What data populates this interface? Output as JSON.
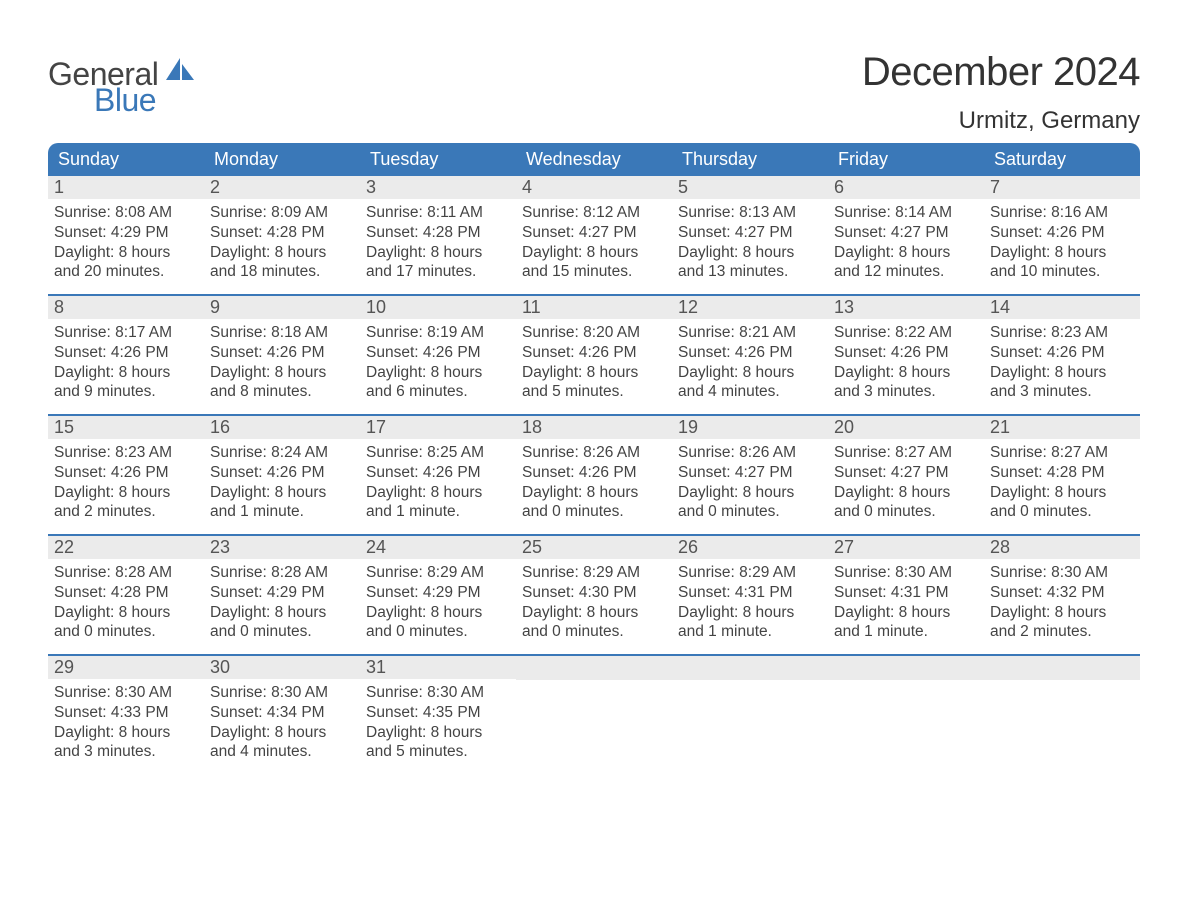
{
  "logo": {
    "line1": "General",
    "line2": "Blue",
    "text_color": "#444444",
    "blue_color": "#3a78b8"
  },
  "title": {
    "month": "December 2024",
    "location": "Urmitz, Germany"
  },
  "colors": {
    "header_bg": "#3a78b8",
    "header_text": "#ffffff",
    "daynum_bg": "#ebebeb",
    "body_text": "#444444",
    "border": "#3a78b8",
    "page_bg": "#ffffff"
  },
  "day_headers": [
    "Sunday",
    "Monday",
    "Tuesday",
    "Wednesday",
    "Thursday",
    "Friday",
    "Saturday"
  ],
  "weeks": [
    [
      {
        "n": "1",
        "sr": "Sunrise: 8:08 AM",
        "ss": "Sunset: 4:29 PM",
        "d1": "Daylight: 8 hours",
        "d2": "and 20 minutes."
      },
      {
        "n": "2",
        "sr": "Sunrise: 8:09 AM",
        "ss": "Sunset: 4:28 PM",
        "d1": "Daylight: 8 hours",
        "d2": "and 18 minutes."
      },
      {
        "n": "3",
        "sr": "Sunrise: 8:11 AM",
        "ss": "Sunset: 4:28 PM",
        "d1": "Daylight: 8 hours",
        "d2": "and 17 minutes."
      },
      {
        "n": "4",
        "sr": "Sunrise: 8:12 AM",
        "ss": "Sunset: 4:27 PM",
        "d1": "Daylight: 8 hours",
        "d2": "and 15 minutes."
      },
      {
        "n": "5",
        "sr": "Sunrise: 8:13 AM",
        "ss": "Sunset: 4:27 PM",
        "d1": "Daylight: 8 hours",
        "d2": "and 13 minutes."
      },
      {
        "n": "6",
        "sr": "Sunrise: 8:14 AM",
        "ss": "Sunset: 4:27 PM",
        "d1": "Daylight: 8 hours",
        "d2": "and 12 minutes."
      },
      {
        "n": "7",
        "sr": "Sunrise: 8:16 AM",
        "ss": "Sunset: 4:26 PM",
        "d1": "Daylight: 8 hours",
        "d2": "and 10 minutes."
      }
    ],
    [
      {
        "n": "8",
        "sr": "Sunrise: 8:17 AM",
        "ss": "Sunset: 4:26 PM",
        "d1": "Daylight: 8 hours",
        "d2": "and 9 minutes."
      },
      {
        "n": "9",
        "sr": "Sunrise: 8:18 AM",
        "ss": "Sunset: 4:26 PM",
        "d1": "Daylight: 8 hours",
        "d2": "and 8 minutes."
      },
      {
        "n": "10",
        "sr": "Sunrise: 8:19 AM",
        "ss": "Sunset: 4:26 PM",
        "d1": "Daylight: 8 hours",
        "d2": "and 6 minutes."
      },
      {
        "n": "11",
        "sr": "Sunrise: 8:20 AM",
        "ss": "Sunset: 4:26 PM",
        "d1": "Daylight: 8 hours",
        "d2": "and 5 minutes."
      },
      {
        "n": "12",
        "sr": "Sunrise: 8:21 AM",
        "ss": "Sunset: 4:26 PM",
        "d1": "Daylight: 8 hours",
        "d2": "and 4 minutes."
      },
      {
        "n": "13",
        "sr": "Sunrise: 8:22 AM",
        "ss": "Sunset: 4:26 PM",
        "d1": "Daylight: 8 hours",
        "d2": "and 3 minutes."
      },
      {
        "n": "14",
        "sr": "Sunrise: 8:23 AM",
        "ss": "Sunset: 4:26 PM",
        "d1": "Daylight: 8 hours",
        "d2": "and 3 minutes."
      }
    ],
    [
      {
        "n": "15",
        "sr": "Sunrise: 8:23 AM",
        "ss": "Sunset: 4:26 PM",
        "d1": "Daylight: 8 hours",
        "d2": "and 2 minutes."
      },
      {
        "n": "16",
        "sr": "Sunrise: 8:24 AM",
        "ss": "Sunset: 4:26 PM",
        "d1": "Daylight: 8 hours",
        "d2": "and 1 minute."
      },
      {
        "n": "17",
        "sr": "Sunrise: 8:25 AM",
        "ss": "Sunset: 4:26 PM",
        "d1": "Daylight: 8 hours",
        "d2": "and 1 minute."
      },
      {
        "n": "18",
        "sr": "Sunrise: 8:26 AM",
        "ss": "Sunset: 4:26 PM",
        "d1": "Daylight: 8 hours",
        "d2": "and 0 minutes."
      },
      {
        "n": "19",
        "sr": "Sunrise: 8:26 AM",
        "ss": "Sunset: 4:27 PM",
        "d1": "Daylight: 8 hours",
        "d2": "and 0 minutes."
      },
      {
        "n": "20",
        "sr": "Sunrise: 8:27 AM",
        "ss": "Sunset: 4:27 PM",
        "d1": "Daylight: 8 hours",
        "d2": "and 0 minutes."
      },
      {
        "n": "21",
        "sr": "Sunrise: 8:27 AM",
        "ss": "Sunset: 4:28 PM",
        "d1": "Daylight: 8 hours",
        "d2": "and 0 minutes."
      }
    ],
    [
      {
        "n": "22",
        "sr": "Sunrise: 8:28 AM",
        "ss": "Sunset: 4:28 PM",
        "d1": "Daylight: 8 hours",
        "d2": "and 0 minutes."
      },
      {
        "n": "23",
        "sr": "Sunrise: 8:28 AM",
        "ss": "Sunset: 4:29 PM",
        "d1": "Daylight: 8 hours",
        "d2": "and 0 minutes."
      },
      {
        "n": "24",
        "sr": "Sunrise: 8:29 AM",
        "ss": "Sunset: 4:29 PM",
        "d1": "Daylight: 8 hours",
        "d2": "and 0 minutes."
      },
      {
        "n": "25",
        "sr": "Sunrise: 8:29 AM",
        "ss": "Sunset: 4:30 PM",
        "d1": "Daylight: 8 hours",
        "d2": "and 0 minutes."
      },
      {
        "n": "26",
        "sr": "Sunrise: 8:29 AM",
        "ss": "Sunset: 4:31 PM",
        "d1": "Daylight: 8 hours",
        "d2": "and 1 minute."
      },
      {
        "n": "27",
        "sr": "Sunrise: 8:30 AM",
        "ss": "Sunset: 4:31 PM",
        "d1": "Daylight: 8 hours",
        "d2": "and 1 minute."
      },
      {
        "n": "28",
        "sr": "Sunrise: 8:30 AM",
        "ss": "Sunset: 4:32 PM",
        "d1": "Daylight: 8 hours",
        "d2": "and 2 minutes."
      }
    ],
    [
      {
        "n": "29",
        "sr": "Sunrise: 8:30 AM",
        "ss": "Sunset: 4:33 PM",
        "d1": "Daylight: 8 hours",
        "d2": "and 3 minutes."
      },
      {
        "n": "30",
        "sr": "Sunrise: 8:30 AM",
        "ss": "Sunset: 4:34 PM",
        "d1": "Daylight: 8 hours",
        "d2": "and 4 minutes."
      },
      {
        "n": "31",
        "sr": "Sunrise: 8:30 AM",
        "ss": "Sunset: 4:35 PM",
        "d1": "Daylight: 8 hours",
        "d2": "and 5 minutes."
      },
      {
        "empty": true
      },
      {
        "empty": true
      },
      {
        "empty": true
      },
      {
        "empty": true
      }
    ]
  ]
}
